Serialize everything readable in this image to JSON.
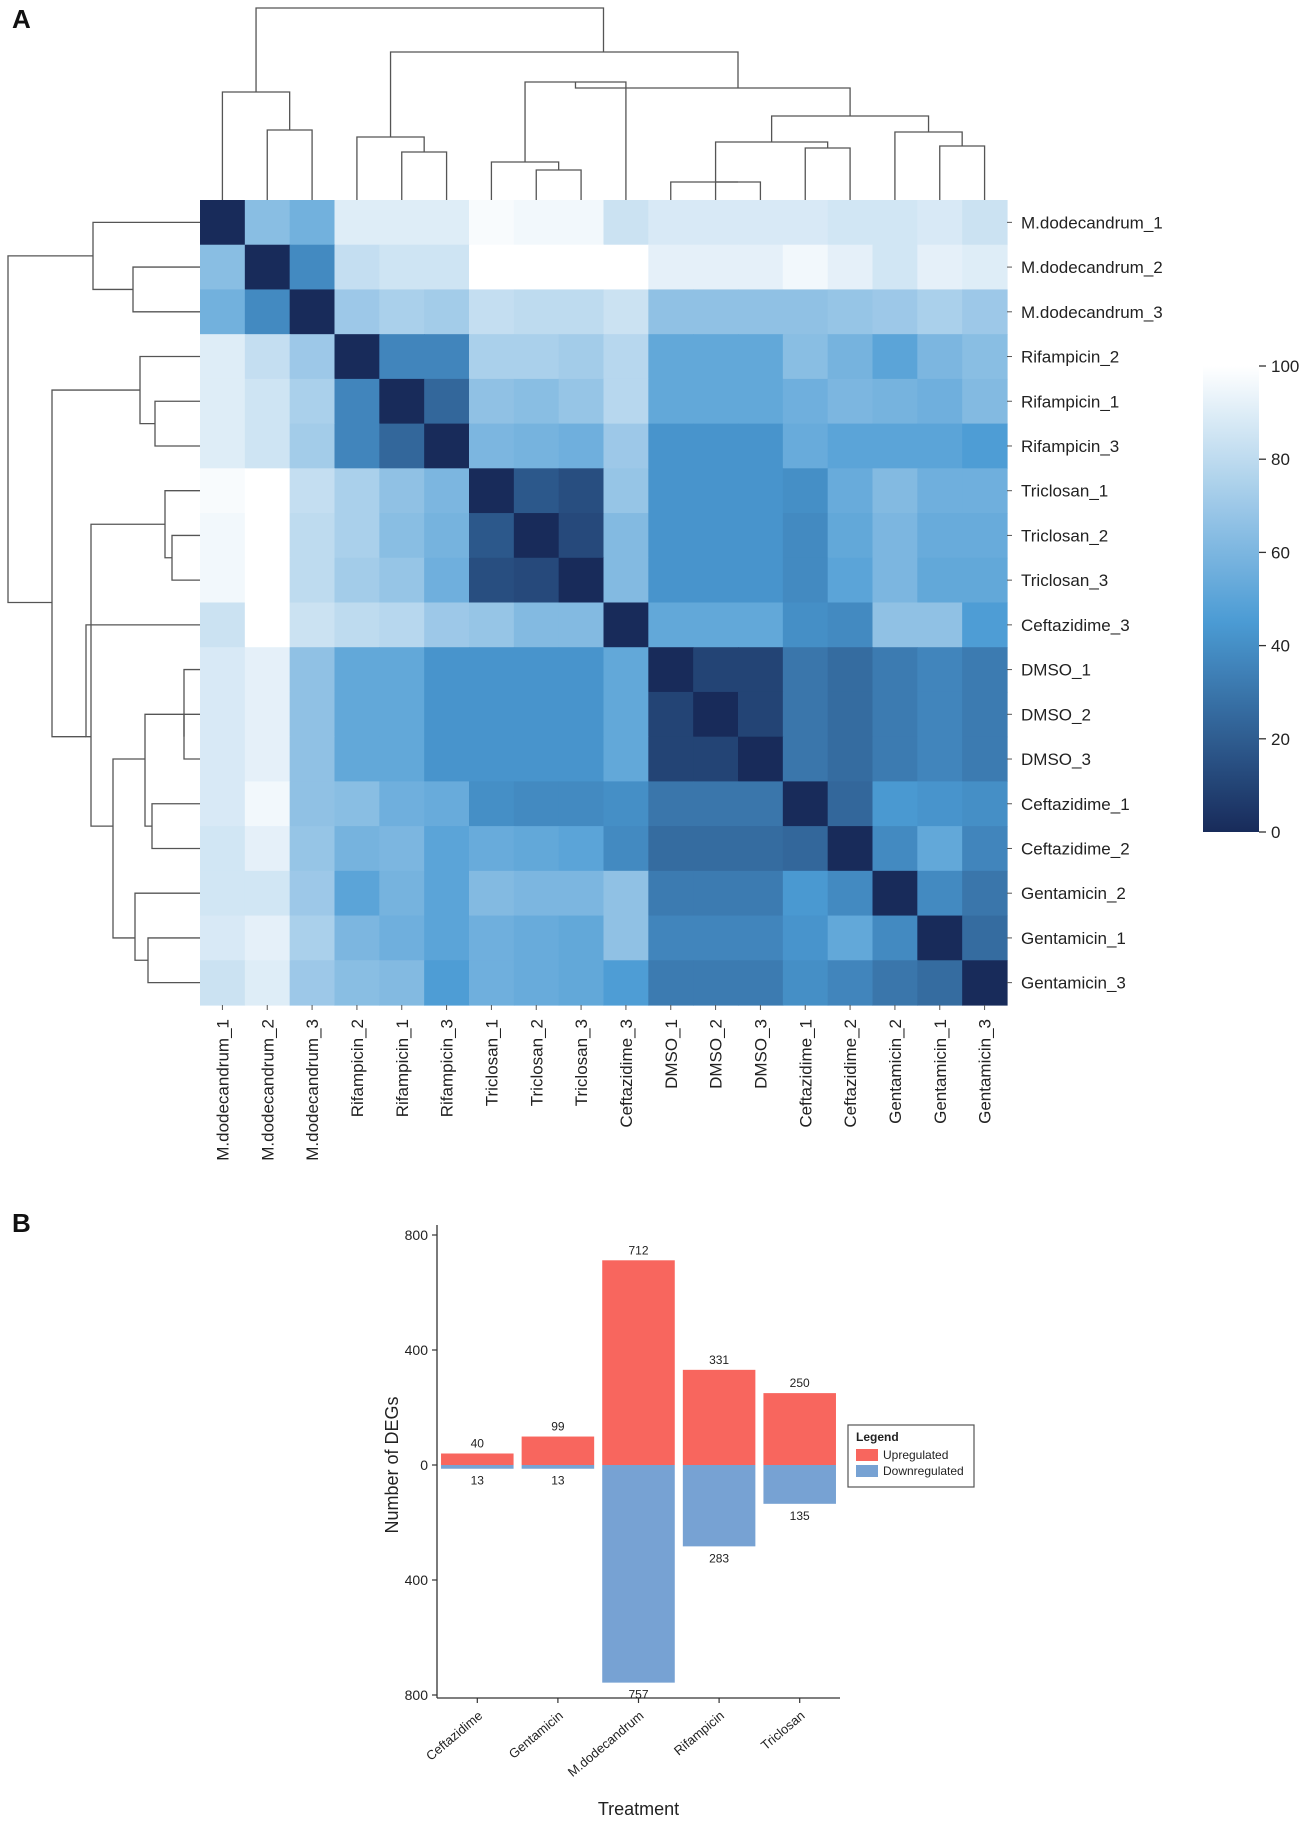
{
  "panel_a": {
    "label": "A"
  },
  "panel_b": {
    "label": "B"
  },
  "chart_data": [
    {
      "type": "heatmap",
      "title": "",
      "row_labels": [
        "M.dodecandrum_1",
        "M.dodecandrum_2",
        "M.dodecandrum_3",
        "Rifampicin_2",
        "Rifampicin_1",
        "Rifampicin_3",
        "Triclosan_1",
        "Triclosan_2",
        "Triclosan_3",
        "Ceftazidime_3",
        "DMSO_1",
        "DMSO_2",
        "DMSO_3",
        "Ceftazidime_1",
        "Ceftazidime_2",
        "Gentamicin_2",
        "Gentamicin_1",
        "Gentamicin_3"
      ],
      "col_labels": [
        "M.dodecandrum_1",
        "M.dodecandrum_2",
        "M.dodecandrum_3",
        "Rifampicin_2",
        "Rifampicin_1",
        "Rifampicin_3",
        "Triclosan_1",
        "Triclosan_2",
        "Triclosan_3",
        "Ceftazidime_3",
        "DMSO_1",
        "DMSO_2",
        "DMSO_3",
        "Ceftazidime_1",
        "Ceftazidime_2",
        "Gentamicin_2",
        "Gentamicin_1",
        "Gentamicin_3"
      ],
      "values": [
        [
          0,
          64,
          57,
          90,
          90,
          90,
          98,
          96,
          96,
          84,
          88,
          88,
          88,
          88,
          86,
          86,
          88,
          84
        ],
        [
          64,
          0,
          38,
          82,
          85,
          85,
          100,
          100,
          100,
          100,
          92,
          92,
          92,
          96,
          92,
          86,
          92,
          90
        ],
        [
          57,
          38,
          0,
          70,
          74,
          72,
          82,
          80,
          80,
          84,
          66,
          66,
          66,
          66,
          68,
          70,
          74,
          70
        ],
        [
          90,
          82,
          70,
          0,
          36,
          36,
          74,
          74,
          72,
          78,
          52,
          52,
          52,
          64,
          58,
          50,
          60,
          64
        ],
        [
          90,
          85,
          74,
          36,
          0,
          24,
          66,
          64,
          68,
          78,
          52,
          52,
          52,
          56,
          60,
          58,
          56,
          62
        ],
        [
          90,
          85,
          72,
          36,
          24,
          0,
          60,
          58,
          56,
          70,
          42,
          42,
          42,
          54,
          50,
          50,
          50,
          46
        ],
        [
          98,
          100,
          82,
          74,
          66,
          60,
          0,
          18,
          14,
          68,
          42,
          42,
          42,
          40,
          54,
          62,
          56,
          56
        ],
        [
          96,
          100,
          80,
          74,
          64,
          58,
          18,
          0,
          12,
          62,
          42,
          42,
          42,
          38,
          52,
          60,
          54,
          54
        ],
        [
          96,
          100,
          80,
          72,
          68,
          56,
          14,
          12,
          0,
          62,
          42,
          42,
          42,
          38,
          50,
          60,
          52,
          52
        ],
        [
          84,
          100,
          84,
          80,
          78,
          70,
          68,
          62,
          62,
          0,
          52,
          52,
          52,
          40,
          38,
          66,
          66,
          46
        ],
        [
          88,
          92,
          66,
          52,
          52,
          42,
          42,
          42,
          42,
          52,
          0,
          10,
          10,
          30,
          26,
          32,
          36,
          32
        ],
        [
          88,
          92,
          66,
          52,
          52,
          42,
          42,
          42,
          42,
          52,
          10,
          0,
          10,
          30,
          26,
          32,
          36,
          32
        ],
        [
          88,
          92,
          66,
          52,
          52,
          42,
          42,
          42,
          42,
          52,
          10,
          10,
          0,
          30,
          26,
          32,
          36,
          32
        ],
        [
          88,
          96,
          66,
          64,
          56,
          54,
          40,
          38,
          38,
          40,
          30,
          30,
          30,
          0,
          24,
          44,
          42,
          40
        ],
        [
          86,
          92,
          68,
          58,
          60,
          50,
          54,
          52,
          50,
          38,
          26,
          26,
          26,
          24,
          0,
          38,
          52,
          36
        ],
        [
          86,
          86,
          70,
          50,
          58,
          50,
          62,
          60,
          60,
          66,
          32,
          32,
          32,
          44,
          38,
          0,
          38,
          30
        ],
        [
          88,
          92,
          74,
          60,
          56,
          50,
          56,
          54,
          52,
          66,
          36,
          36,
          36,
          42,
          52,
          38,
          0,
          26
        ],
        [
          84,
          90,
          70,
          64,
          62,
          46,
          56,
          54,
          52,
          46,
          32,
          32,
          32,
          40,
          36,
          30,
          26,
          0
        ]
      ],
      "colorbar": {
        "ticks": [
          0,
          20,
          40,
          60,
          80,
          100
        ],
        "min": 0,
        "max": 100,
        "low_color": "#182b5a",
        "mid_color": "#4b9bd4",
        "high_color": "#ffffff"
      },
      "dendrogram": "hierarchical clustering on rows and columns"
    },
    {
      "type": "bar",
      "title": "",
      "xlabel": "Treatment",
      "ylabel": "Number of DEGs",
      "categories": [
        "Ceftazidime",
        "Gentamicin",
        "M.dodecandrum",
        "Rifampicin",
        "Triclosan"
      ],
      "series": [
        {
          "name": "Upregulated",
          "values": [
            40,
            99,
            712,
            331,
            250
          ],
          "color": "#f8665e"
        },
        {
          "name": "Downregulated",
          "values": [
            13,
            13,
            757,
            283,
            135
          ],
          "color": "#77a2d3"
        }
      ],
      "yticks": [
        800,
        400,
        0,
        400,
        800
      ],
      "ylim": [
        -800,
        800
      ],
      "legend": {
        "title": "Legend",
        "placement": "right"
      }
    }
  ]
}
